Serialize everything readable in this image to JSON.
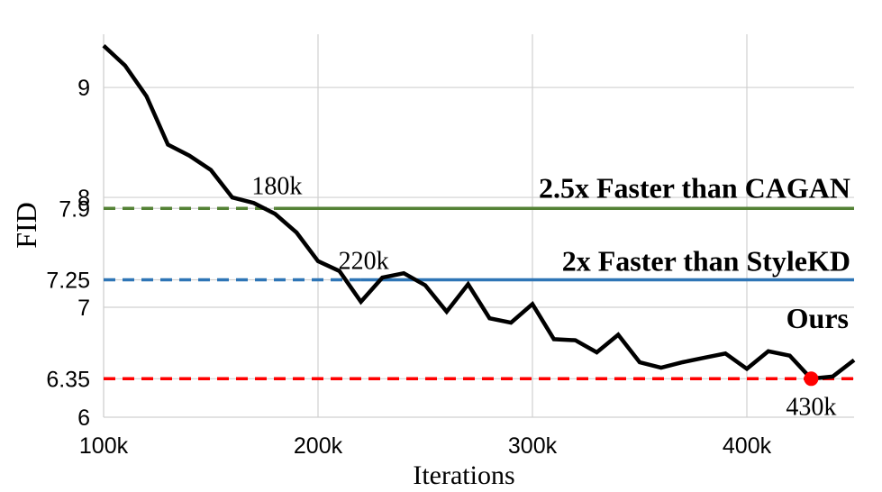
{
  "chart_data": {
    "type": "line",
    "xlabel": "Iterations",
    "ylabel": "FID",
    "xlim": [
      100000,
      450000
    ],
    "ylim": [
      6,
      9.55
    ],
    "x_ticks": [
      {
        "value": 100000,
        "label": "100k"
      },
      {
        "value": 200000,
        "label": "200k"
      },
      {
        "value": 300000,
        "label": "300k"
      },
      {
        "value": 400000,
        "label": "400k"
      }
    ],
    "y_ticks": [
      {
        "value": 9,
        "label": "9"
      },
      {
        "value": 8,
        "label": "8"
      },
      {
        "value": 7.9,
        "label": "7.9"
      },
      {
        "value": 7.25,
        "label": "7.25"
      },
      {
        "value": 7,
        "label": "7"
      },
      {
        "value": 6.35,
        "label": "6.35"
      },
      {
        "value": 6,
        "label": "6"
      }
    ],
    "grid": true,
    "series": [
      {
        "name": "Ours",
        "color": "#000000",
        "x": [
          100000,
          110000,
          120000,
          130000,
          140000,
          150000,
          160000,
          170000,
          180000,
          190000,
          200000,
          210000,
          220000,
          230000,
          240000,
          250000,
          260000,
          270000,
          280000,
          290000,
          300000,
          310000,
          320000,
          330000,
          340000,
          350000,
          360000,
          370000,
          380000,
          390000,
          400000,
          410000,
          420000,
          430000,
          440000,
          450000
        ],
        "y": [
          9.38,
          9.2,
          8.92,
          8.48,
          8.38,
          8.25,
          8.0,
          7.95,
          7.85,
          7.68,
          7.42,
          7.33,
          7.05,
          7.27,
          7.31,
          7.2,
          6.96,
          7.21,
          6.9,
          6.86,
          7.03,
          6.71,
          6.7,
          6.59,
          6.75,
          6.5,
          6.45,
          6.5,
          6.54,
          6.58,
          6.44,
          6.6,
          6.56,
          6.35,
          6.37,
          6.52
        ]
      }
    ],
    "reference_lines": [
      {
        "y": 7.9,
        "color": "#548235",
        "cross_label": "180k",
        "cross_x": 180000,
        "text": "2.5x Faster than CAGAN"
      },
      {
        "y": 7.25,
        "color": "#2e75b6",
        "cross_label": "220k",
        "cross_x": 220000,
        "text": "2x Faster than StyleKD"
      },
      {
        "y": 6.35,
        "color": "#ff0000",
        "cross_label": "430k",
        "cross_x": 430000,
        "text": ""
      }
    ],
    "highlight_point": {
      "x": 430000,
      "y": 6.35,
      "color": "#ff0000"
    },
    "series_annotation": "Ours"
  }
}
